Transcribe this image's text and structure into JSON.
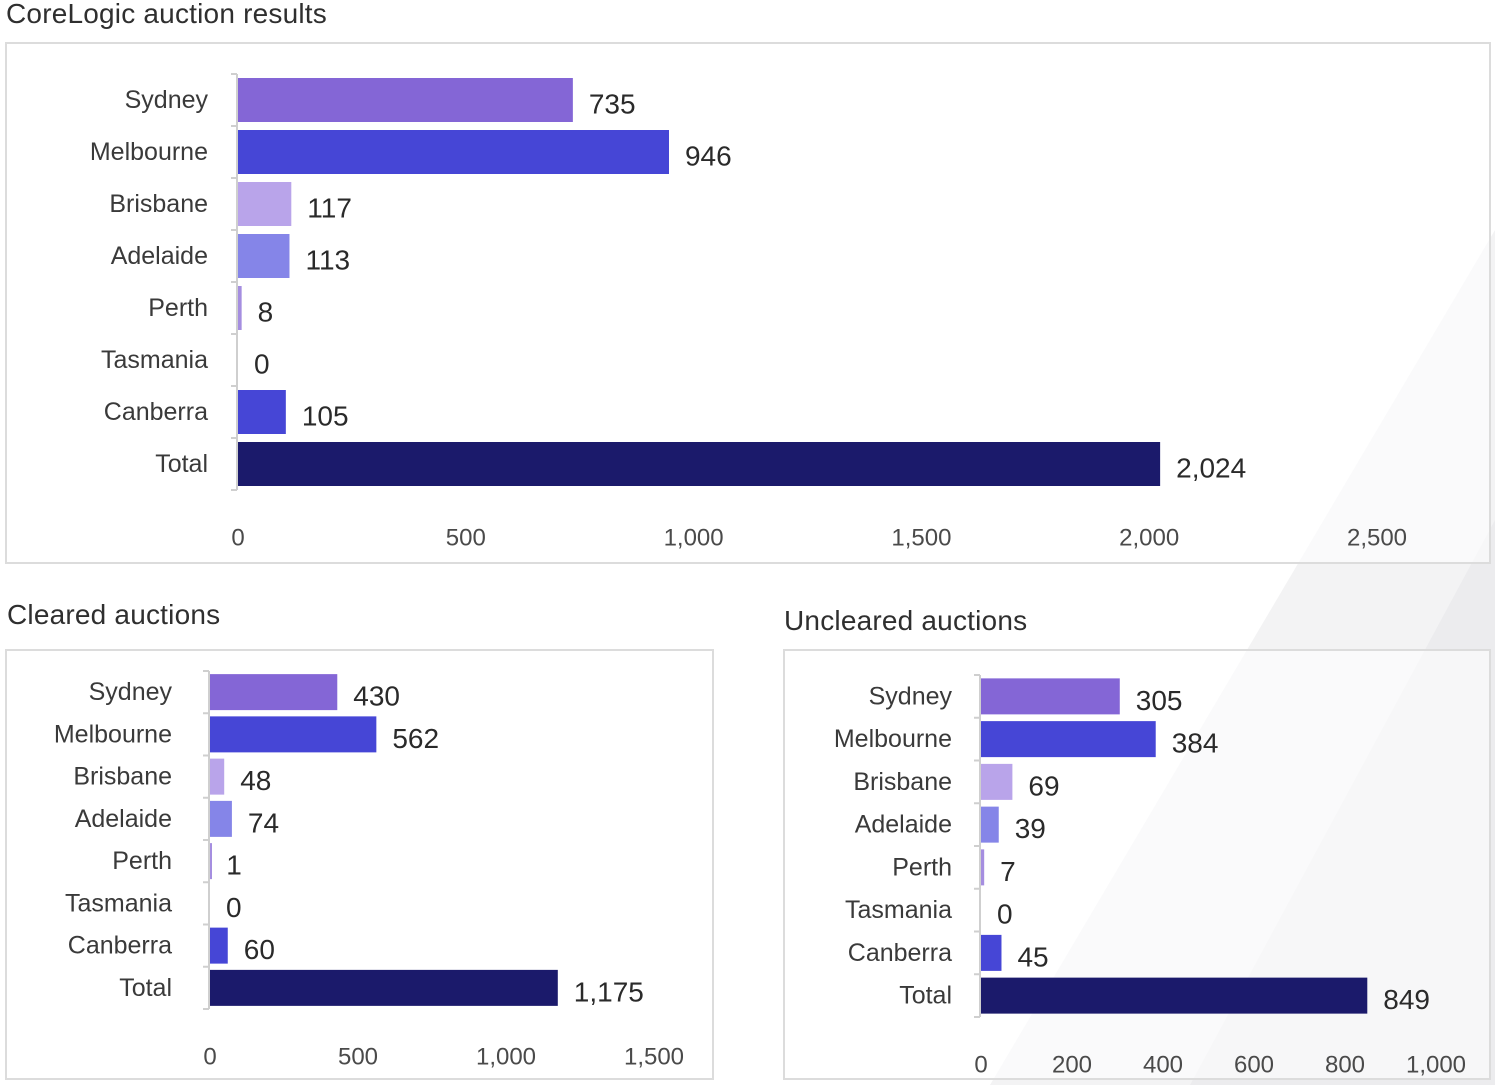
{
  "titles": {
    "main": "CoreLogic auction results",
    "cleared": "Cleared auctions",
    "uncleared": "Uncleared auctions"
  },
  "colors": {
    "Sydney": "#8466d6",
    "Melbourne": "#4646d6",
    "Brisbane": "#b9a4ea",
    "Adelaide": "#8585e8",
    "Perth": "#a58ee0",
    "Tasmania": "#c4b8ee",
    "Canberra": "#4646d6",
    "Total": "#1b1a6b",
    "axis": "#cfcfcf",
    "panel_border": "#dcdcdc"
  },
  "chart_data": [
    {
      "type": "bar",
      "orientation": "horizontal",
      "title": "CoreLogic auction results",
      "categories": [
        "Sydney",
        "Melbourne",
        "Brisbane",
        "Adelaide",
        "Perth",
        "Tasmania",
        "Canberra",
        "Total"
      ],
      "values": [
        735,
        946,
        117,
        113,
        8,
        0,
        105,
        2024
      ],
      "value_labels": [
        "735",
        "946",
        "117",
        "113",
        "8",
        "0",
        "105",
        "2,024"
      ],
      "xlim": [
        0,
        2500
      ],
      "xticks": [
        0,
        500,
        1000,
        1500,
        2000,
        2500
      ],
      "xtick_labels": [
        "0",
        "500",
        "1,000",
        "1,500",
        "2,000",
        "2,500"
      ],
      "grid": false,
      "legend": "none"
    },
    {
      "type": "bar",
      "orientation": "horizontal",
      "title": "Cleared auctions",
      "categories": [
        "Sydney",
        "Melbourne",
        "Brisbane",
        "Adelaide",
        "Perth",
        "Tasmania",
        "Canberra",
        "Total"
      ],
      "values": [
        430,
        562,
        48,
        74,
        1,
        0,
        60,
        1175
      ],
      "value_labels": [
        "430",
        "562",
        "48",
        "74",
        "1",
        "0",
        "60",
        "1,175"
      ],
      "xlim": [
        0,
        1500
      ],
      "xticks": [
        0,
        500,
        1000,
        1500
      ],
      "xtick_labels": [
        "0",
        "500",
        "1,000",
        "1,500"
      ],
      "grid": false,
      "legend": "none"
    },
    {
      "type": "bar",
      "orientation": "horizontal",
      "title": "Uncleared auctions",
      "categories": [
        "Sydney",
        "Melbourne",
        "Brisbane",
        "Adelaide",
        "Perth",
        "Tasmania",
        "Canberra",
        "Total"
      ],
      "values": [
        305,
        384,
        69,
        39,
        7,
        0,
        45,
        849
      ],
      "value_labels": [
        "305",
        "384",
        "69",
        "39",
        "7",
        "0",
        "45",
        "849"
      ],
      "xlim": [
        0,
        1000
      ],
      "xticks": [
        0,
        200,
        400,
        600,
        800,
        1000
      ],
      "xtick_labels": [
        "0",
        "200",
        "400",
        "600",
        "800",
        "1,000"
      ],
      "grid": false,
      "legend": "none"
    }
  ]
}
